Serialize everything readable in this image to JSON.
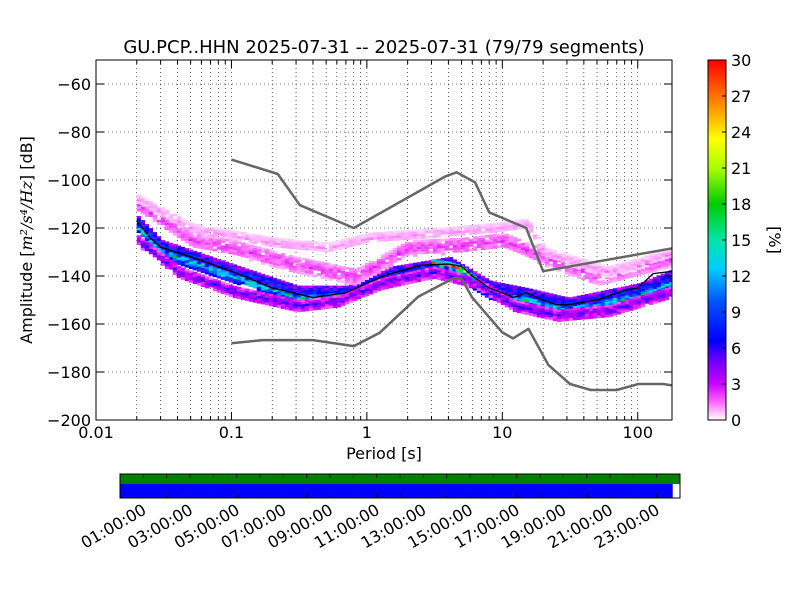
{
  "chart_data": {
    "type": "heatmap",
    "title": "GU.PCP..HHN   2025-07-31 -- 2025-07-31  (79/79 segments)",
    "xlabel": "Period [s]",
    "ylabel_prefix": "Amplitude [",
    "ylabel_units": "m²/s⁴/Hz",
    "ylabel_suffix": "] [dB]",
    "xscale": "log",
    "xlim": [
      0.01,
      179
    ],
    "ylim": [
      -200,
      -50
    ],
    "x_ticks": [
      {
        "v": 0.01,
        "label": "0.01"
      },
      {
        "v": 0.1,
        "label": "0.1"
      },
      {
        "v": 1,
        "label": "1"
      },
      {
        "v": 10,
        "label": "10"
      },
      {
        "v": 100,
        "label": "100"
      }
    ],
    "y_ticks": [
      {
        "v": -60,
        "label": "−60"
      },
      {
        "v": -80,
        "label": "−80"
      },
      {
        "v": -100,
        "label": "−100"
      },
      {
        "v": -120,
        "label": "−120"
      },
      {
        "v": -140,
        "label": "−140"
      },
      {
        "v": -160,
        "label": "−160"
      },
      {
        "v": -180,
        "label": "−180"
      },
      {
        "v": -200,
        "label": "−200"
      }
    ],
    "grid": true,
    "colorbar": {
      "label": "[%]",
      "min": 0,
      "max": 30,
      "ticks": [
        {
          "v": 0,
          "label": "0"
        },
        {
          "v": 3,
          "label": "3"
        },
        {
          "v": 6,
          "label": "6"
        },
        {
          "v": 9,
          "label": "9"
        },
        {
          "v": 12,
          "label": "12"
        },
        {
          "v": 15,
          "label": "15"
        },
        {
          "v": 18,
          "label": "18"
        },
        {
          "v": 21,
          "label": "21"
        },
        {
          "v": 24,
          "label": "24"
        },
        {
          "v": 27,
          "label": "27"
        },
        {
          "v": 30,
          "label": "30"
        }
      ]
    },
    "series": [
      {
        "role": "high-noise-model",
        "color": "#666666",
        "points": [
          [
            0.1,
            -91.5
          ],
          [
            0.22,
            -97.5
          ],
          [
            0.32,
            -110.5
          ],
          [
            0.8,
            -120
          ],
          [
            3.8,
            -98.5
          ],
          [
            4.6,
            -96.8
          ],
          [
            6.3,
            -101
          ],
          [
            8,
            -113.5
          ],
          [
            15,
            -120
          ],
          [
            20,
            -138
          ],
          [
            200,
            -128
          ]
        ]
      },
      {
        "role": "low-noise-model",
        "color": "#666666",
        "points": [
          [
            0.1,
            -168
          ],
          [
            0.17,
            -166.7
          ],
          [
            0.4,
            -166.7
          ],
          [
            0.8,
            -169.2
          ],
          [
            1.24,
            -163.7
          ],
          [
            2.4,
            -148.6
          ],
          [
            4.3,
            -141.1
          ],
          [
            5,
            -141.1
          ],
          [
            6,
            -149
          ],
          [
            10,
            -163.5
          ],
          [
            12,
            -166
          ],
          [
            15.6,
            -162
          ],
          [
            21.9,
            -177.1
          ],
          [
            31.6,
            -185
          ],
          [
            45,
            -187.5
          ],
          [
            70,
            -187.5
          ],
          [
            101,
            -185
          ],
          [
            154,
            -185
          ],
          [
            200,
            -186
          ]
        ]
      },
      {
        "role": "median",
        "color": "#000000",
        "points": [
          [
            0.02,
            -117
          ],
          [
            0.025,
            -124
          ],
          [
            0.03,
            -128
          ],
          [
            0.05,
            -132
          ],
          [
            0.1,
            -138
          ],
          [
            0.2,
            -145
          ],
          [
            0.4,
            -149
          ],
          [
            0.7,
            -147
          ],
          [
            1,
            -143
          ],
          [
            1.5,
            -139
          ],
          [
            2.5,
            -135.5
          ],
          [
            4,
            -135
          ],
          [
            5,
            -136
          ],
          [
            6,
            -140
          ],
          [
            8,
            -145
          ],
          [
            10,
            -147
          ],
          [
            12,
            -149
          ],
          [
            15,
            -147
          ],
          [
            20,
            -150
          ],
          [
            25,
            -152
          ],
          [
            30,
            -152
          ],
          [
            50,
            -150
          ],
          [
            80,
            -146
          ],
          [
            100,
            -145
          ],
          [
            130,
            -139
          ],
          [
            180,
            -138
          ]
        ]
      }
    ],
    "density_bands": [
      {
        "center": [
          [
            0.02,
            -118
          ],
          [
            0.03,
            -128
          ],
          [
            0.1,
            -138
          ],
          [
            0.3,
            -147
          ],
          [
            0.7,
            -147
          ],
          [
            1.5,
            -139
          ],
          [
            4,
            -135
          ],
          [
            8,
            -145
          ],
          [
            15,
            -148
          ],
          [
            30,
            -152
          ],
          [
            100,
            -146
          ],
          [
            180,
            -140
          ]
        ],
        "half_width_db": 3,
        "percent": 9
      },
      {
        "center": [
          [
            0.02,
            -120
          ],
          [
            0.03,
            -130
          ],
          [
            0.1,
            -140
          ],
          [
            0.3,
            -149
          ],
          [
            0.7,
            -148
          ],
          [
            1.5,
            -141
          ],
          [
            4,
            -137
          ],
          [
            8,
            -147
          ],
          [
            15,
            -150
          ],
          [
            30,
            -154
          ],
          [
            100,
            -148
          ],
          [
            180,
            -142
          ]
        ],
        "half_width_db": 2,
        "percent": 14
      },
      {
        "center": [
          [
            0.02,
            -110
          ],
          [
            0.05,
            -125
          ],
          [
            0.1,
            -128
          ],
          [
            0.3,
            -135
          ],
          [
            0.8,
            -140
          ],
          [
            2,
            -128
          ],
          [
            5,
            -127
          ],
          [
            10,
            -125
          ],
          [
            20,
            -132
          ],
          [
            50,
            -140
          ],
          [
            180,
            -132
          ]
        ],
        "half_width_db": 3,
        "percent": 2
      },
      {
        "center": [
          [
            0.02,
            -108
          ],
          [
            0.05,
            -120
          ],
          [
            0.2,
            -126
          ],
          [
            0.5,
            -128
          ],
          [
            1,
            -124
          ],
          [
            3,
            -122
          ],
          [
            8,
            -120
          ],
          [
            15,
            -118
          ],
          [
            20,
            -130
          ],
          [
            60,
            -138
          ],
          [
            180,
            -130
          ]
        ],
        "half_width_db": 2,
        "percent": 1
      },
      {
        "center": [
          [
            0.02,
            -125
          ],
          [
            0.04,
            -138
          ],
          [
            0.1,
            -146
          ],
          [
            0.3,
            -152
          ],
          [
            0.6,
            -150
          ],
          [
            1.2,
            -143
          ],
          [
            3,
            -138
          ],
          [
            6,
            -142
          ],
          [
            12,
            -152
          ],
          [
            25,
            -156
          ],
          [
            60,
            -154
          ],
          [
            180,
            -146
          ]
        ],
        "half_width_db": 2,
        "percent": 5
      },
      {
        "center": [
          [
            3,
            -134
          ],
          [
            4,
            -135
          ],
          [
            5,
            -137
          ],
          [
            6,
            -140
          ]
        ],
        "half_width_db": 1,
        "percent": 25
      }
    ]
  },
  "time_bar": {
    "tick_labels": [
      "01:00:00",
      "03:00:00",
      "05:00:00",
      "07:00:00",
      "09:00:00",
      "11:00:00",
      "13:00:00",
      "15:00:00",
      "17:00:00",
      "19:00:00",
      "21:00:00",
      "23:00:00"
    ],
    "coverage_fraction_green": 1.0,
    "coverage_fraction_blue": 0.987,
    "green_color": "#008000",
    "blue_color": "#0000ff"
  }
}
